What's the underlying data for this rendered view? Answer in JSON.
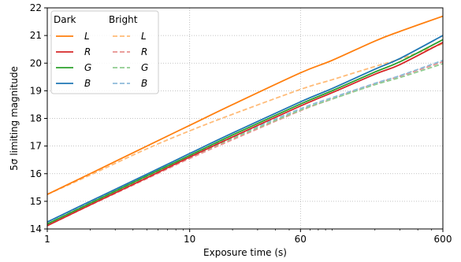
{
  "chart_data": {
    "type": "line",
    "xlabel": "Exposure time (s)",
    "ylabel": "5σ limiting magnitude",
    "xscale": "log",
    "xlim": [
      1,
      600
    ],
    "ylim": [
      14,
      22
    ],
    "xticks": [
      1,
      10,
      60,
      600
    ],
    "xtick_labels": [
      "1",
      "10",
      "60",
      "600"
    ],
    "yticks": [
      14,
      15,
      16,
      17,
      18,
      19,
      20,
      21,
      22
    ],
    "ytick_labels": [
      "14",
      "15",
      "16",
      "17",
      "18",
      "19",
      "20",
      "21",
      "22"
    ],
    "grid": true,
    "legend_placement": "top-left",
    "legend_groups": [
      "Dark",
      "Bright"
    ],
    "x": [
      1,
      2,
      5,
      10,
      20,
      60,
      100,
      200,
      300,
      600
    ],
    "series": [
      {
        "name": "L",
        "group": "Dark",
        "style": "solid",
        "color": "#ff7f0e",
        "values": [
          15.25,
          16.0,
          17.0,
          17.75,
          18.5,
          19.65,
          20.1,
          20.8,
          21.15,
          21.7
        ]
      },
      {
        "name": "R",
        "group": "Dark",
        "style": "solid",
        "color": "#d62728",
        "values": [
          14.12,
          14.87,
          15.85,
          16.6,
          17.33,
          18.45,
          18.93,
          19.6,
          19.95,
          20.75
        ]
      },
      {
        "name": "G",
        "group": "Dark",
        "style": "solid",
        "color": "#2ca02c",
        "values": [
          14.18,
          14.93,
          15.92,
          16.66,
          17.4,
          18.52,
          19.0,
          19.68,
          20.05,
          20.85
        ]
      },
      {
        "name": "B",
        "group": "Dark",
        "style": "solid",
        "color": "#1f77b4",
        "values": [
          14.25,
          15.0,
          15.98,
          16.73,
          17.47,
          18.6,
          19.08,
          19.78,
          20.17,
          21.0
        ]
      },
      {
        "name": "L",
        "group": "Bright",
        "style": "dashed",
        "color": "#ffbb78",
        "values": [
          15.25,
          15.95,
          16.9,
          17.55,
          18.15,
          19.05,
          19.4,
          19.88,
          20.15,
          20.7
        ]
      },
      {
        "name": "R",
        "group": "Bright",
        "style": "dashed",
        "color": "#e8908f",
        "values": [
          14.12,
          14.86,
          15.82,
          16.55,
          17.23,
          18.28,
          18.7,
          19.25,
          19.53,
          20.05
        ]
      },
      {
        "name": "G",
        "group": "Bright",
        "style": "dashed",
        "color": "#8fcc8f",
        "values": [
          14.18,
          14.92,
          15.88,
          16.6,
          17.28,
          18.3,
          18.7,
          19.22,
          19.48,
          19.98
        ]
      },
      {
        "name": "B",
        "group": "Bright",
        "style": "dashed",
        "color": "#8fbbd9",
        "values": [
          14.25,
          14.98,
          15.94,
          16.65,
          17.33,
          18.35,
          18.75,
          19.27,
          19.55,
          20.1
        ]
      }
    ]
  }
}
